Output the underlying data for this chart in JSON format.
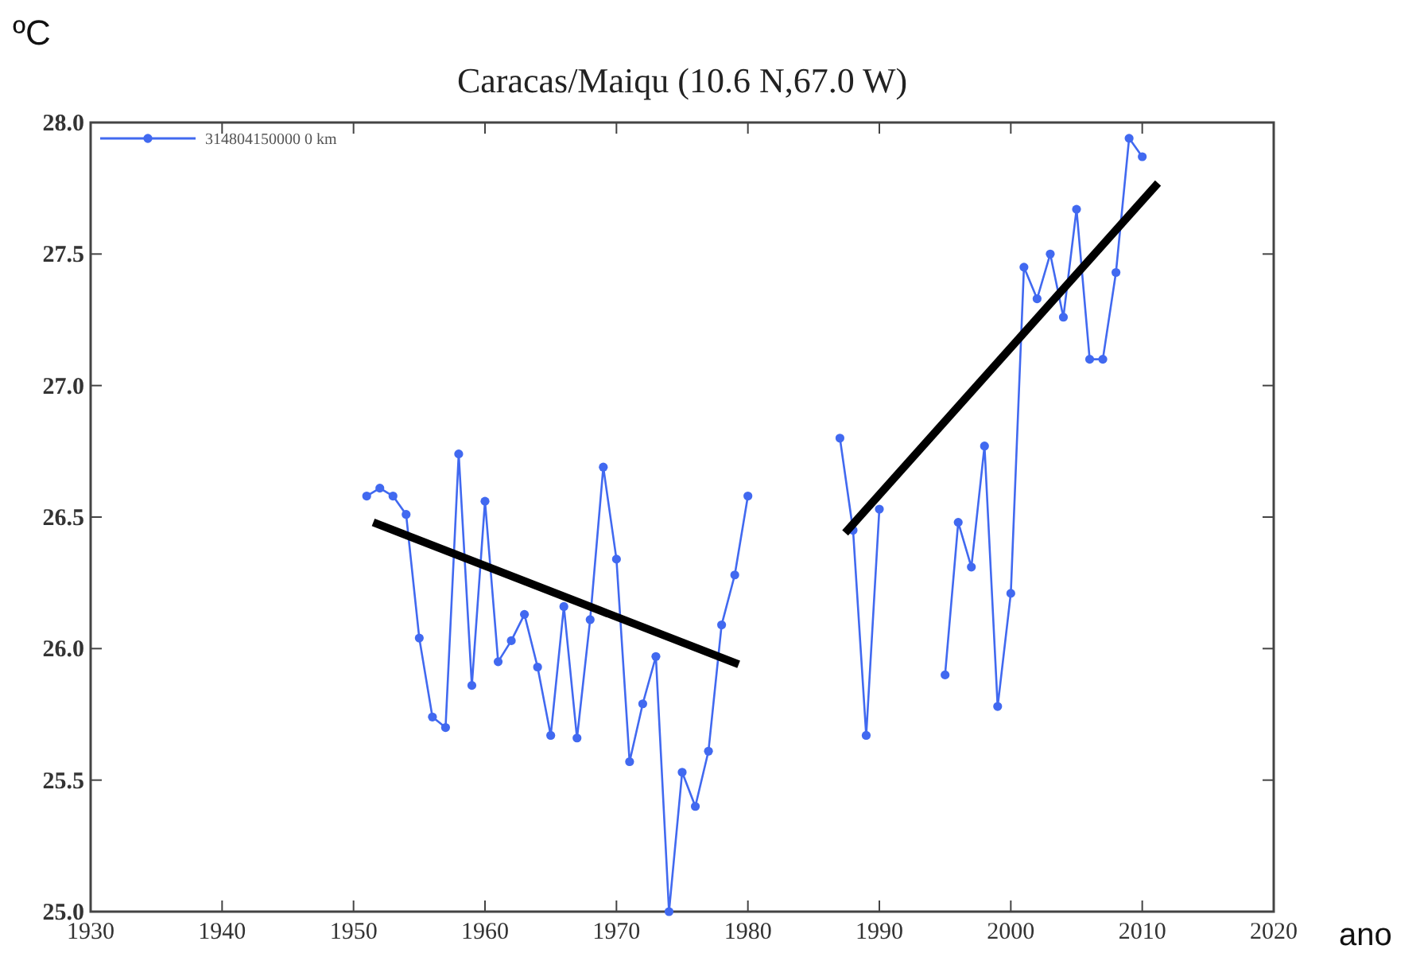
{
  "chart_data": {
    "type": "line",
    "title": "Caracas/Maiqu (10.6 N,67.0 W)",
    "xlabel": "ano",
    "ylabel": "ºC",
    "x": [
      1951,
      1952,
      1953,
      1954,
      1955,
      1956,
      1957,
      1958,
      1959,
      1960,
      1961,
      1962,
      1963,
      1964,
      1965,
      1966,
      1967,
      1968,
      1969,
      1970,
      1971,
      1972,
      1973,
      1974,
      1975,
      1976,
      1977,
      1978,
      1979,
      1980,
      1981,
      1982,
      1983,
      1984,
      1985,
      1986,
      1987,
      1988,
      1989,
      1990,
      1991,
      1992,
      1993,
      1994,
      1995,
      1996,
      1997,
      1998,
      1999,
      2000,
      2001,
      2002,
      2003,
      2004,
      2005,
      2006,
      2007,
      2008,
      2009,
      2010
    ],
    "series": [
      {
        "name": "314804150000 0 km",
        "color": "#4169f0",
        "marker": "circle",
        "values": [
          26.58,
          26.61,
          26.58,
          26.51,
          26.04,
          25.74,
          25.7,
          26.74,
          25.86,
          26.56,
          25.95,
          26.03,
          26.13,
          25.93,
          25.67,
          26.16,
          25.66,
          26.11,
          26.69,
          26.34,
          25.57,
          25.79,
          25.97,
          25.0,
          25.53,
          25.4,
          25.61,
          26.09,
          26.28,
          26.58,
          null,
          null,
          null,
          null,
          null,
          null,
          26.8,
          26.45,
          25.67,
          26.53,
          null,
          null,
          null,
          null,
          25.9,
          26.48,
          26.31,
          26.77,
          25.78,
          26.21,
          27.45,
          27.33,
          27.5,
          27.26,
          27.67,
          27.1,
          27.1,
          27.43,
          27.94,
          27.87
        ]
      },
      {
        "type": "line",
        "color": "#000000",
        "marker": "none",
        "x": [
          1951.5,
          1979.3
        ],
        "values": [
          26.48,
          25.94
        ]
      },
      {
        "type": "line",
        "color": "#000000",
        "marker": "none",
        "x": [
          1987.4,
          2011.2
        ],
        "values": [
          26.44,
          27.77
        ]
      }
    ],
    "xlim": [
      1930,
      2020
    ],
    "xticks": [
      1930,
      1940,
      1950,
      1960,
      1970,
      1980,
      1990,
      2000,
      2010,
      2020
    ],
    "ylim": [
      25,
      28
    ],
    "yticks": [
      {
        "value": 25,
        "label": "25.0"
      },
      {
        "value": 25.5,
        "label": "25.5"
      },
      {
        "value": 26,
        "label": "26.0"
      },
      {
        "value": 26.5,
        "label": "26.5"
      },
      {
        "value": 27,
        "label": "27.0"
      },
      {
        "value": 27.5,
        "label": "27.5"
      },
      {
        "value": 28,
        "label": "28.0"
      }
    ],
    "grid": false,
    "legend": "top left",
    "line_style": "solid"
  }
}
